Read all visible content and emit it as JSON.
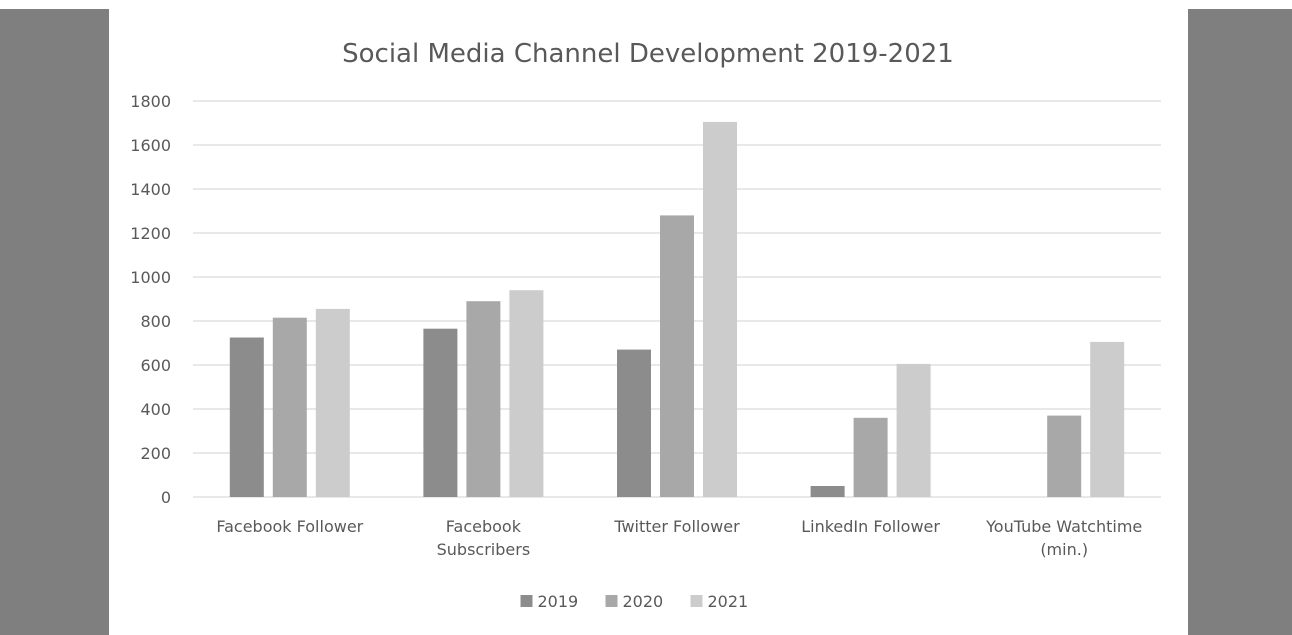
{
  "chart_data": {
    "type": "bar",
    "title": "Social Media Channel Development 2019-2021",
    "categories": [
      [
        "Facebook Follower"
      ],
      [
        "Facebook",
        "Subscribers"
      ],
      [
        "Twitter Follower"
      ],
      [
        "LinkedIn Follower"
      ],
      [
        "YouTube Watchtime",
        "(min.)"
      ]
    ],
    "series": [
      {
        "name": "2019",
        "color": "#8c8c8c",
        "values": [
          725,
          765,
          670,
          50,
          0
        ]
      },
      {
        "name": "2020",
        "color": "#a8a8a8",
        "values": [
          815,
          890,
          1280,
          360,
          370
        ]
      },
      {
        "name": "2021",
        "color": "#cccccc",
        "values": [
          855,
          940,
          1705,
          605,
          705
        ]
      }
    ],
    "ylim": [
      0,
      1800
    ],
    "yticks": [
      0,
      200,
      400,
      600,
      800,
      1000,
      1200,
      1400,
      1600,
      1800
    ],
    "grid": true,
    "legend": "bottom",
    "gridline_color": "#d9d9d9"
  }
}
